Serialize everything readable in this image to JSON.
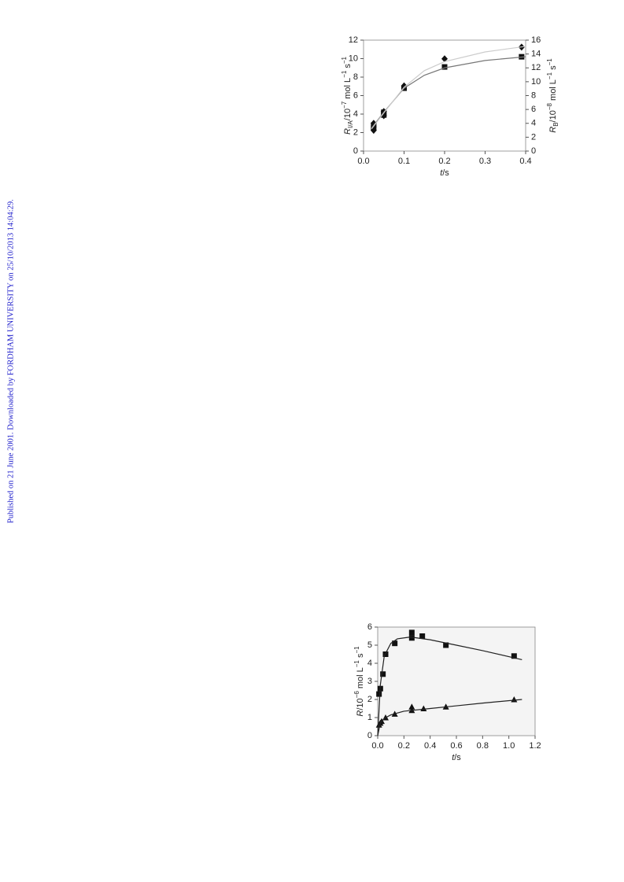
{
  "watermark": "Published on 21 June 2001. Downloaded by FORDHAM UNIVERSITY on 25/10/2013 14:04:29.",
  "chart_data": [
    {
      "type": "scatter",
      "xlabel": [
        "t",
        "/s"
      ],
      "ylabel": [
        "R",
        "I/A",
        "/10",
        "−7",
        " mol L",
        "−1",
        " s",
        "−1"
      ],
      "y2label": [
        "R",
        "B",
        "/10",
        "−8",
        " mol L",
        "−1",
        " s",
        "−1"
      ],
      "xlim": [
        0,
        0.4
      ],
      "xticks": [
        {
          "value": 0,
          "label": "0.0"
        },
        0.1,
        0.2,
        0.3,
        0.4
      ],
      "ylim": [
        0,
        12
      ],
      "yticks": [
        0,
        2,
        4,
        6,
        8,
        10,
        12
      ],
      "y2lim": [
        0,
        16
      ],
      "y2ticks": [
        0,
        2,
        4,
        6,
        8,
        10,
        12,
        14,
        16
      ],
      "series": [
        {
          "marker": "square",
          "color": "#111111",
          "x": [
            0.025,
            0.025,
            0.05,
            0.05,
            0.1,
            0.2,
            0.39
          ],
          "values": [
            2.5,
            2.8,
            3.9,
            4.2,
            6.8,
            9.1,
            10.2
          ]
        },
        {
          "marker": "diamond",
          "color": "#111111",
          "axis": "y2",
          "x": [
            0.025,
            0.025,
            0.05,
            0.05,
            0.1,
            0.2,
            0.39
          ],
          "values": [
            3.0,
            4.0,
            5.1,
            5.7,
            9.4,
            13.3,
            15.0
          ]
        },
        {
          "marker": "line",
          "color": "#777777",
          "x": [
            0.02,
            0.05,
            0.1,
            0.15,
            0.2,
            0.3,
            0.4
          ],
          "values": [
            2.5,
            4.2,
            6.8,
            8.2,
            9.0,
            9.8,
            10.2
          ]
        },
        {
          "marker": "line",
          "color": "#cccccc",
          "axis": "y2",
          "x": [
            0.02,
            0.05,
            0.1,
            0.15,
            0.2,
            0.3,
            0.4
          ],
          "values": [
            3.2,
            5.5,
            9.2,
            11.6,
            12.9,
            14.3,
            15.1
          ]
        }
      ]
    },
    {
      "type": "scatter",
      "xlabel": [
        "t",
        "/s"
      ],
      "ylabel": [
        "R",
        "/10",
        "−6",
        " mol L",
        "−1",
        " s",
        "−1"
      ],
      "xlim": [
        0,
        1.2
      ],
      "xticks": [
        {
          "value": 0,
          "label": "0.0"
        },
        0.2,
        0.4,
        0.6,
        0.8,
        {
          "value": 1,
          "label": "1.0"
        },
        1.2
      ],
      "ylim": [
        0,
        6
      ],
      "yticks": [
        0,
        1,
        2,
        3,
        4,
        5,
        6
      ],
      "background": "#f4f4f4",
      "series": [
        {
          "marker": "square",
          "color": "#111111",
          "x": [
            0.01,
            0.02,
            0.04,
            0.06,
            0.13,
            0.26,
            0.26,
            0.34,
            0.52,
            1.04
          ],
          "values": [
            2.3,
            2.6,
            3.4,
            4.5,
            5.1,
            5.7,
            5.4,
            5.5,
            5.0,
            4.4
          ]
        },
        {
          "marker": "triangle",
          "color": "#111111",
          "x": [
            0.01,
            0.02,
            0.03,
            0.06,
            0.13,
            0.26,
            0.26,
            0.35,
            0.52,
            1.04
          ],
          "values": [
            0.6,
            0.7,
            0.8,
            1.0,
            1.2,
            1.4,
            1.6,
            1.5,
            1.6,
            2.0
          ]
        },
        {
          "marker": "line",
          "color": "#222222",
          "x": [
            0,
            0.02,
            0.05,
            0.1,
            0.15,
            0.25,
            0.4,
            0.6,
            0.8,
            1.1
          ],
          "values": [
            0,
            2.8,
            4.4,
            5.1,
            5.35,
            5.45,
            5.3,
            5.0,
            4.7,
            4.2
          ]
        },
        {
          "marker": "line",
          "color": "#222222",
          "x": [
            0,
            0.02,
            0.05,
            0.1,
            0.2,
            0.4,
            0.6,
            0.8,
            1.1
          ],
          "values": [
            0,
            0.7,
            0.95,
            1.15,
            1.35,
            1.5,
            1.65,
            1.8,
            2.0
          ]
        }
      ]
    }
  ]
}
